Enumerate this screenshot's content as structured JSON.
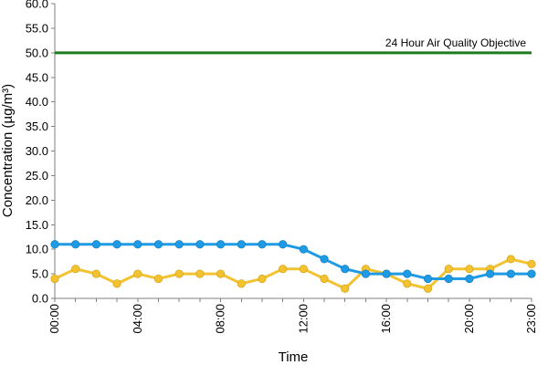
{
  "chart_data": {
    "type": "line",
    "title": "",
    "xlabel": "Time",
    "ylabel": "Concentration (µg/m³)",
    "ylim": [
      0,
      60
    ],
    "y_ticks": [
      0,
      5,
      10,
      15,
      20,
      25,
      30,
      35,
      40,
      45,
      50,
      55,
      60
    ],
    "y_tick_labels": [
      "0.0",
      "5.0",
      "10.0",
      "15.0",
      "20.0",
      "25.0",
      "30.0",
      "35.0",
      "40.0",
      "45.0",
      "50.0",
      "55.0",
      "60.0"
    ],
    "x": [
      0,
      1,
      2,
      3,
      4,
      5,
      6,
      7,
      8,
      9,
      10,
      11,
      12,
      13,
      14,
      15,
      16,
      17,
      18,
      19,
      20,
      21,
      22,
      23
    ],
    "x_tick_values": [
      0,
      4,
      8,
      12,
      16,
      20,
      23
    ],
    "x_tick_labels": [
      "00:00",
      "04:00",
      "08:00",
      "12:00",
      "16:00",
      "20:00",
      "23:00"
    ],
    "grid": false,
    "legend": "none",
    "series": [
      {
        "color": "#1f9be6",
        "values": [
          11,
          11,
          11,
          11,
          11,
          11,
          11,
          11,
          11,
          11,
          11,
          11,
          10,
          8,
          6,
          5,
          5,
          5,
          4,
          4,
          4,
          5,
          5,
          5
        ]
      },
      {
        "color": "#f2c230",
        "values": [
          4,
          6,
          5,
          3,
          5,
          4,
          5,
          5,
          5,
          3,
          4,
          6,
          6,
          4,
          2,
          6,
          5,
          3,
          2,
          6,
          6,
          6,
          8,
          7
        ]
      }
    ],
    "reference_line": {
      "value": 50,
      "label": "24 Hour Air Quality Objective",
      "color": "#1e7a1e"
    }
  }
}
